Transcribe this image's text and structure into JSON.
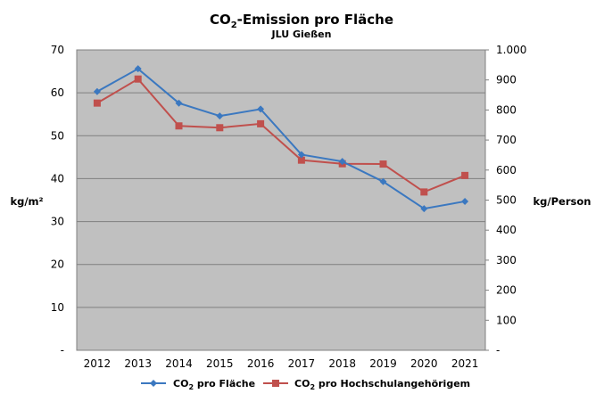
{
  "chart_data": {
    "type": "line",
    "title": {
      "main_prefix": "CO",
      "main_sub": "2",
      "main_suffix": "-Emission pro Fläche",
      "subtitle": "JLU Gießen"
    },
    "categories": [
      "2012",
      "2013",
      "2014",
      "2015",
      "2016",
      "2017",
      "2018",
      "2019",
      "2020",
      "2021"
    ],
    "y_left": {
      "label": "kg/m²",
      "ylim": [
        0,
        70
      ],
      "ticks": [
        "-",
        "10",
        "20",
        "30",
        "40",
        "50",
        "60",
        "70"
      ]
    },
    "y_right": {
      "label": "kg/Person",
      "ylim": [
        0,
        1000
      ],
      "ticks": [
        "-",
        "100",
        "200",
        "300",
        "400",
        "500",
        "600",
        "700",
        "800",
        "900",
        "1.000"
      ]
    },
    "series": [
      {
        "name_prefix": "CO",
        "name_sub": "2",
        "name_suffix": " pro Fläche",
        "axis": "left",
        "marker": "diamond",
        "color": "#3b78c0",
        "values": [
          60.3,
          65.6,
          57.6,
          54.6,
          56.2,
          45.6,
          44.0,
          39.3,
          33.0,
          34.7
        ]
      },
      {
        "name_prefix": "CO",
        "name_sub": "2",
        "name_suffix": " pro Hochschulangehörigem",
        "axis": "right",
        "marker": "square",
        "color": "#c0504d",
        "values": [
          823,
          903,
          747,
          741,
          754,
          633,
          621,
          620,
          527,
          582
        ]
      }
    ],
    "plot_background": "#c0c0c0",
    "gridlines": true,
    "legend_position": "bottom"
  }
}
